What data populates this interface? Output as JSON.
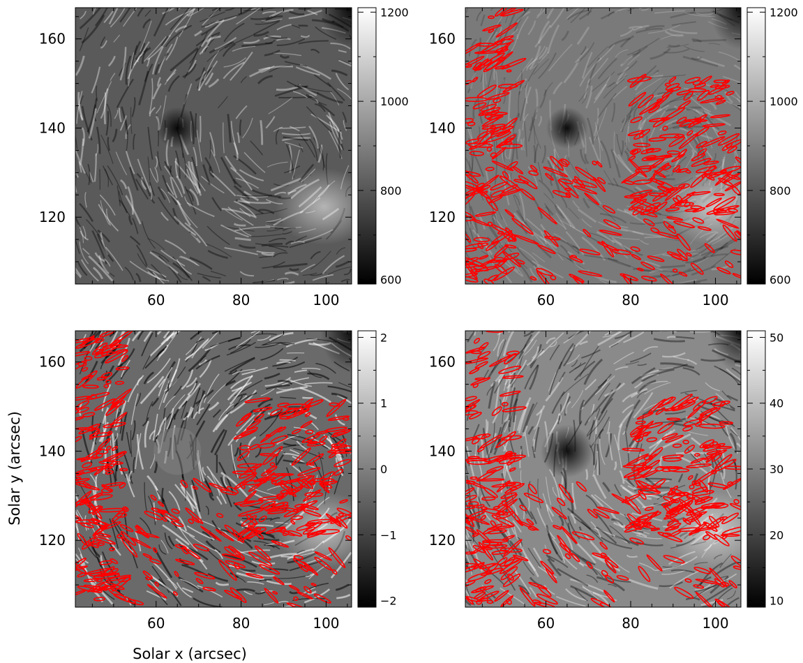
{
  "chart_data": {
    "type": "heatmap",
    "xlabel": "Solar x (arcsec)",
    "ylabel": "Solar y (arcsec)",
    "xlim": [
      41,
      106
    ],
    "ylim": [
      105,
      167
    ],
    "x_ticks": [
      60,
      80,
      100
    ],
    "y_ticks": [
      120,
      140,
      160
    ],
    "colormap": "grayscale",
    "contour_color": "#ff0000",
    "panels": [
      {
        "id": "top-left",
        "colorbar": {
          "range": [
            590,
            1210
          ],
          "ticks": [
            "600",
            "800",
            "1000",
            "1200"
          ],
          "tick_values": [
            600,
            800,
            1000,
            1200
          ]
        },
        "contours": false,
        "style": "fibrils"
      },
      {
        "id": "top-right",
        "colorbar": {
          "range": [
            590,
            1210
          ],
          "ticks": [
            "600",
            "800",
            "1000",
            "1200"
          ],
          "tick_values": [
            600,
            800,
            1000,
            1200
          ]
        },
        "contours": true,
        "style": "smooth"
      },
      {
        "id": "bottom-left",
        "colorbar": {
          "range": [
            -2.1,
            2.1
          ],
          "ticks": [
            "−2",
            "−1",
            "0",
            "1",
            "2"
          ],
          "tick_values": [
            -2,
            -1,
            0,
            1,
            2
          ]
        },
        "contours": true,
        "style": "contrast"
      },
      {
        "id": "bottom-right",
        "colorbar": {
          "range": [
            9,
            51
          ],
          "ticks": [
            "10",
            "20",
            "30",
            "40",
            "50"
          ],
          "tick_values": [
            10,
            20,
            30,
            40,
            50
          ]
        },
        "contours": true,
        "style": "width"
      }
    ]
  }
}
